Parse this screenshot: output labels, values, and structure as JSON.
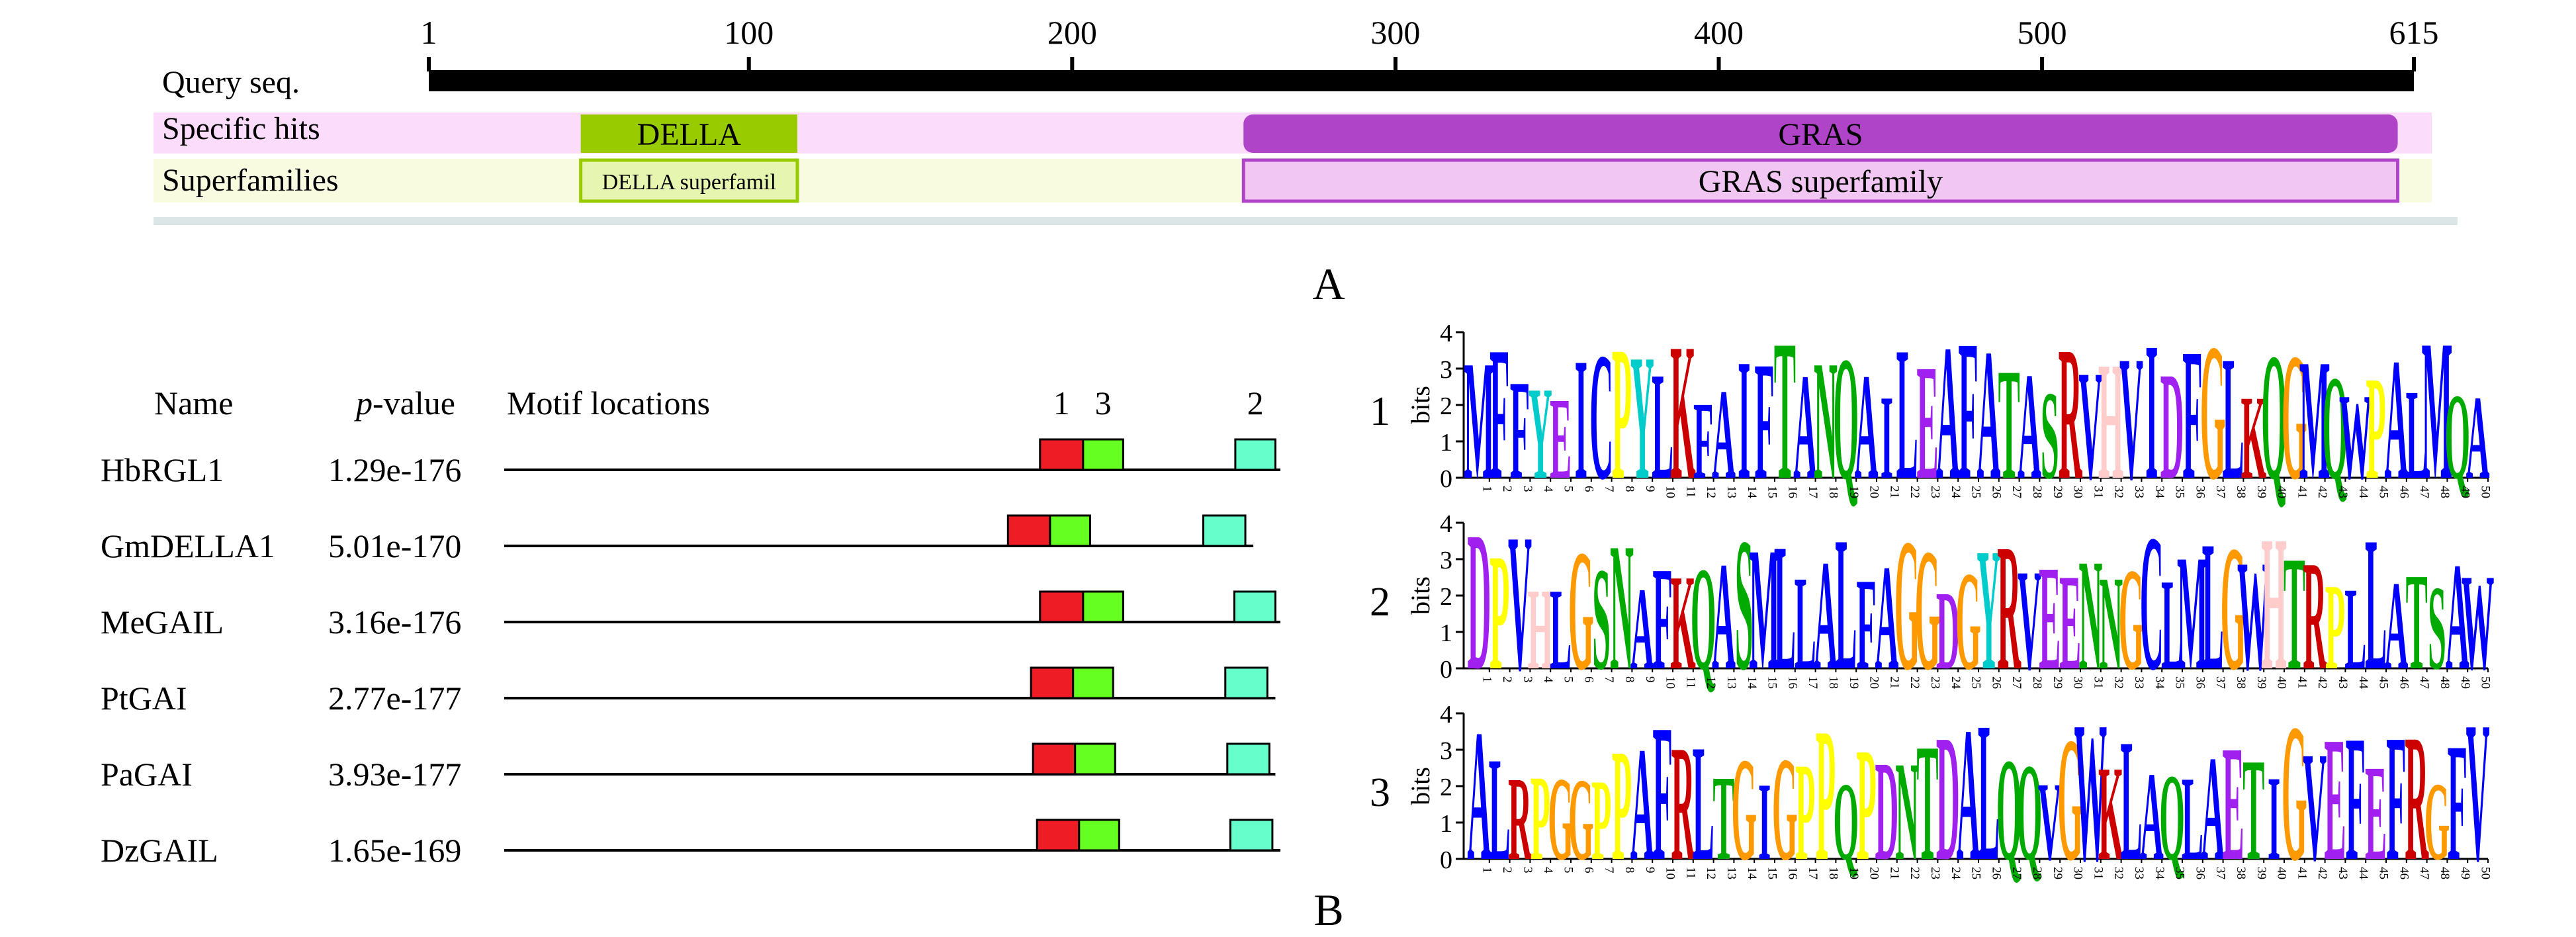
{
  "panel_a": {
    "label": "A",
    "query_label": "Query seq.",
    "specific_hits_label": "Specific hits",
    "superfamilies_label": "Superfamilies",
    "ruler": {
      "start": 1,
      "end": 615,
      "ticks": [
        1,
        100,
        200,
        300,
        400,
        500,
        615
      ]
    },
    "specific_hits": [
      {
        "name": "DELLA",
        "start": 48,
        "end": 115,
        "color": "#99cc00"
      },
      {
        "name": "GRAS",
        "start": 253,
        "end": 610,
        "color": "#b044c9"
      }
    ],
    "superfamilies": [
      {
        "name": "DELLA superfamil",
        "start": 48,
        "end": 115,
        "color": "#e6f5b0"
      },
      {
        "name": "GRAS superfamily",
        "start": 253,
        "end": 610,
        "color": "#f2c6f2"
      }
    ]
  },
  "panel_b": {
    "label": "B",
    "header": {
      "name": "Name",
      "pvalue_italic": "p",
      "pvalue_rest": "-value",
      "locations": "Motif locations"
    },
    "motif_header_labels": [
      {
        "label": "1",
        "motif": 1
      },
      {
        "label": "3",
        "motif": 3
      },
      {
        "label": "2",
        "motif": 2
      }
    ],
    "motif_colors": {
      "1": "#ee1c24",
      "2": "#66ffcc",
      "3": "#66ff22"
    },
    "sequences": [
      {
        "name": "HbRGL1",
        "pvalue": "1.29e-176",
        "line_end": 775,
        "motifs": [
          {
            "motif": 1,
            "start": 535,
            "end": 578
          },
          {
            "motif": 3,
            "start": 578,
            "end": 618
          },
          {
            "motif": 2,
            "start": 730,
            "end": 770
          }
        ]
      },
      {
        "name": "GmDELLA1",
        "pvalue": "5.01e-170",
        "line_end": 748,
        "motifs": [
          {
            "motif": 1,
            "start": 503,
            "end": 545
          },
          {
            "motif": 3,
            "start": 545,
            "end": 585
          },
          {
            "motif": 2,
            "start": 698,
            "end": 740
          }
        ]
      },
      {
        "name": "MeGAIL",
        "pvalue": "3.16e-176",
        "line_end": 775,
        "motifs": [
          {
            "motif": 1,
            "start": 535,
            "end": 578
          },
          {
            "motif": 3,
            "start": 578,
            "end": 618
          },
          {
            "motif": 2,
            "start": 729,
            "end": 770
          }
        ]
      },
      {
        "name": "PtGAI",
        "pvalue": "2.77e-177",
        "line_end": 770,
        "motifs": [
          {
            "motif": 1,
            "start": 526,
            "end": 568
          },
          {
            "motif": 3,
            "start": 568,
            "end": 608
          },
          {
            "motif": 2,
            "start": 720,
            "end": 762
          }
        ]
      },
      {
        "name": "PaGAI",
        "pvalue": "3.93e-177",
        "line_end": 770,
        "motifs": [
          {
            "motif": 1,
            "start": 528,
            "end": 570
          },
          {
            "motif": 3,
            "start": 570,
            "end": 610
          },
          {
            "motif": 2,
            "start": 722,
            "end": 764
          }
        ]
      },
      {
        "name": "DzGAIL",
        "pvalue": "1.65e-169",
        "line_end": 775,
        "motifs": [
          {
            "motif": 1,
            "start": 532,
            "end": 574
          },
          {
            "motif": 3,
            "start": 574,
            "end": 614
          },
          {
            "motif": 2,
            "start": 725,
            "end": 767
          }
        ]
      }
    ]
  },
  "logos": {
    "ylabel": "bits",
    "ymax": 4,
    "yticks": [
      0,
      1,
      2,
      3,
      4
    ],
    "positions": 50,
    "residue_colors": {
      "A": "#0000ff",
      "C": "#0000ff",
      "F": "#0000ff",
      "I": "#0000ff",
      "L": "#0000ff",
      "M": "#0000ff",
      "V": "#0000ff",
      "W": "#0000ff",
      "G": "#ff9900",
      "P": "#ffff00",
      "H": "#ffcccc",
      "Y": "#00cccc",
      "S": "#00aa00",
      "T": "#00aa00",
      "N": "#00aa00",
      "Q": "#00aa00",
      "D": "#a020f0",
      "E": "#a020f0",
      "K": "#cc0000",
      "R": "#cc0000"
    },
    "motifs": [
      {
        "label": "1",
        "residues": "MFFYEICPYLKFAIFTANQAILEAFATASRVHVIDFGLKQGMQWPALMQA"
      },
      {
        "label": "2",
        "residues": "DPVHLGSNAFKQASMLLALFAGGDGYRVEENNGCLMLGWHTRPLLATSAW"
      },
      {
        "label": "3",
        "residues": "ALRPGGPPAFRLTGIGPPQPDNTDALQQVGWKLAQLAETIGVEFEFRGFV"
      }
    ]
  }
}
